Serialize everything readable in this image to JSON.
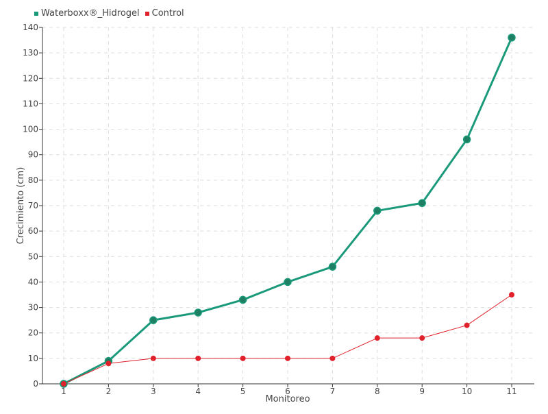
{
  "chart_data": {
    "type": "line",
    "xlabel": "Monitoreo",
    "ylabel": "Crecimiento (cm)",
    "categories": [
      "1",
      "2",
      "3",
      "4",
      "5",
      "6",
      "7",
      "8",
      "9",
      "10",
      "11"
    ],
    "ylim": [
      0,
      140
    ],
    "yticks": [
      0,
      10,
      20,
      30,
      40,
      50,
      60,
      70,
      80,
      90,
      100,
      110,
      120,
      130,
      140
    ],
    "grid": true,
    "legend_position": "top-left",
    "series": [
      {
        "name": "Waterboxx®_Hidrogel",
        "color": "#1a9a7a",
        "values": [
          0,
          9,
          25,
          28,
          33,
          40,
          46,
          68,
          71,
          96,
          136
        ]
      },
      {
        "name": "Control",
        "color": "#e0202a",
        "values": [
          0,
          8,
          10,
          10,
          10,
          10,
          10,
          18,
          18,
          23,
          35
        ]
      }
    ]
  }
}
